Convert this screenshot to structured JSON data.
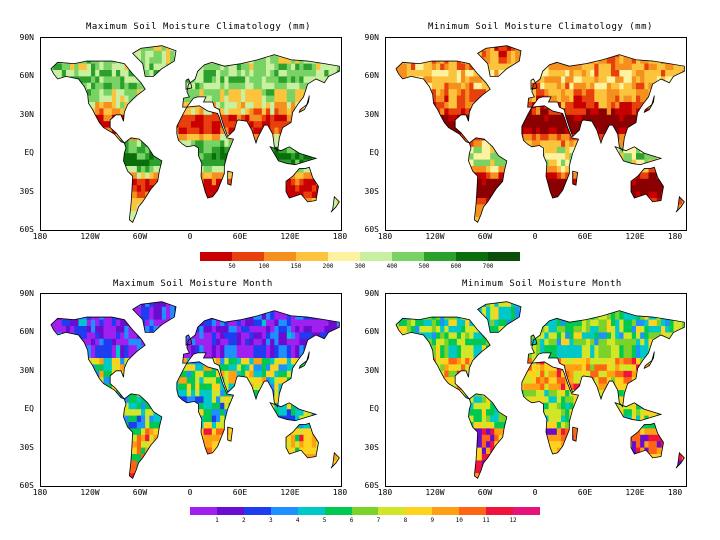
{
  "panels": [
    {
      "title": "Maximum Soil Moisture Climatology (mm)",
      "y_ticks": [
        "90N",
        "60N",
        "30N",
        "EQ",
        "30S",
        "60S"
      ],
      "x_ticks": [
        "180",
        "120W",
        "60W",
        "0",
        "60E",
        "120E",
        "180"
      ]
    },
    {
      "title": "Minimum Soil Moisture Climatology (mm)",
      "y_ticks": [
        "90N",
        "60N",
        "30N",
        "EQ",
        "30S",
        "60S"
      ],
      "x_ticks": [
        "180",
        "120W",
        "60W",
        "0",
        "60E",
        "120E",
        "180"
      ]
    },
    {
      "title": "Maximum Soil Moisture Month",
      "y_ticks": [
        "90N",
        "60N",
        "30N",
        "EQ",
        "30S",
        "60S"
      ],
      "x_ticks": [
        "180",
        "120W",
        "60W",
        "0",
        "60E",
        "120E",
        "180"
      ]
    },
    {
      "title": "Minimum Soil Moisture Month",
      "y_ticks": [
        "90N",
        "60N",
        "30N",
        "EQ",
        "30S",
        "60S"
      ],
      "x_ticks": [
        "180",
        "120W",
        "60W",
        "0",
        "60E",
        "120E",
        "180"
      ]
    }
  ],
  "colorbar_mm": {
    "labels": [
      "50",
      "100",
      "150",
      "200",
      "300",
      "400",
      "500",
      "600",
      "700"
    ],
    "colors": [
      "#c80000",
      "#e8400c",
      "#f58f1e",
      "#fcc43c",
      "#fdf2a0",
      "#c8f0a0",
      "#78d264",
      "#2ca02c",
      "#0a6e0a",
      "#0a4e0a"
    ]
  },
  "colorbar_month": {
    "labels": [
      "1",
      "2",
      "3",
      "4",
      "5",
      "6",
      "7",
      "8",
      "9",
      "10",
      "11",
      "12"
    ],
    "colors": [
      "#a020f0",
      "#6a0dd0",
      "#1e3cf0",
      "#1e90ff",
      "#00c8c8",
      "#00c850",
      "#7cd228",
      "#d2e628",
      "#ffd21e",
      "#ffa014",
      "#ff6414",
      "#f0143c",
      "#e6147a"
    ]
  },
  "map_palettes": {
    "max_climatology": [
      "#0a6e0a",
      "#2ca02c",
      "#78d264",
      "#c8f0a0",
      "#fcc43c",
      "#f58f1e",
      "#e8400c",
      "#c80000"
    ],
    "min_climatology": [
      "#2ca02c",
      "#78d264",
      "#fdf2a0",
      "#fcc43c",
      "#f58f1e",
      "#e8400c",
      "#c80000",
      "#8b0000"
    ],
    "max_month": [
      "#a020f0",
      "#6a0dd0",
      "#1e3cf0",
      "#1e90ff",
      "#00c8c8",
      "#00c850",
      "#d2e628",
      "#ffd21e",
      "#ffa014",
      "#ff6414",
      "#f0143c"
    ],
    "min_month": [
      "#1e90ff",
      "#00c8c8",
      "#00c850",
      "#7cd228",
      "#d2e628",
      "#ffd21e",
      "#ffa014",
      "#ff6414",
      "#f0143c",
      "#6a0dd0"
    ]
  }
}
